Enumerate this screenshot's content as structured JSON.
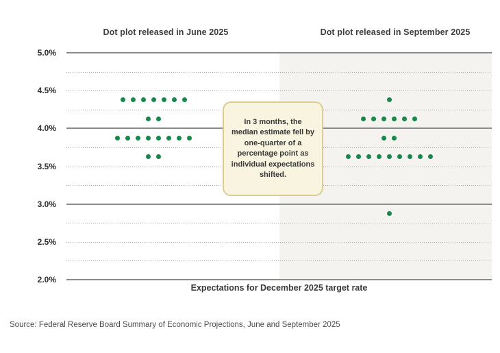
{
  "titles": {
    "june": "Dot plot released in June 2025",
    "september": "Dot plot released in September 2025"
  },
  "annotation": {
    "text": "In 3 months, the median estimate fell by one-quarter of a percentage point as individual expectations shifted.",
    "background": "#f8f4df",
    "border_color": "#dbcc90"
  },
  "x_axis_label": "Expectations for December 2025 target rate",
  "source": "Source: Federal Reserve Board Summary of Economic Projections, June and September 2025",
  "colors": {
    "dot_green": "#17874a",
    "major_gridline": "#8b8b8b",
    "minor_gridline": "#a8a6a2",
    "right_panel_background": "#f4f3f0"
  },
  "chart_data": {
    "type": "scatter",
    "subtype": "dot-plot",
    "title": "",
    "xlabel": "Expectations for December 2025 target rate",
    "ylabel": "",
    "ylim": [
      2.0,
      5.0
    ],
    "y_minor_step": 0.25,
    "grid": "major-solid-minor-dotted",
    "y_ticks": [
      {
        "value": 5.0,
        "label": "5.0%"
      },
      {
        "value": 4.5,
        "label": "4.5%"
      },
      {
        "value": 4.0,
        "label": "4.0%"
      },
      {
        "value": 3.5,
        "label": "3.5%"
      },
      {
        "value": 3.0,
        "label": "3.0%"
      },
      {
        "value": 2.5,
        "label": "2.5%"
      },
      {
        "value": 2.0,
        "label": "2.0%"
      }
    ],
    "series": [
      {
        "name": "Dot plot released in June 2025",
        "rows": [
          {
            "rate": 4.375,
            "count": 7
          },
          {
            "rate": 4.125,
            "count": 2
          },
          {
            "rate": 3.875,
            "count": 8
          },
          {
            "rate": 3.625,
            "count": 2
          }
        ]
      },
      {
        "name": "Dot plot released in September 2025",
        "rows": [
          {
            "rate": 4.375,
            "count": 1
          },
          {
            "rate": 4.125,
            "count": 6
          },
          {
            "rate": 3.875,
            "count": 2
          },
          {
            "rate": 3.625,
            "count": 9
          },
          {
            "rate": 2.875,
            "count": 1
          }
        ]
      }
    ]
  }
}
